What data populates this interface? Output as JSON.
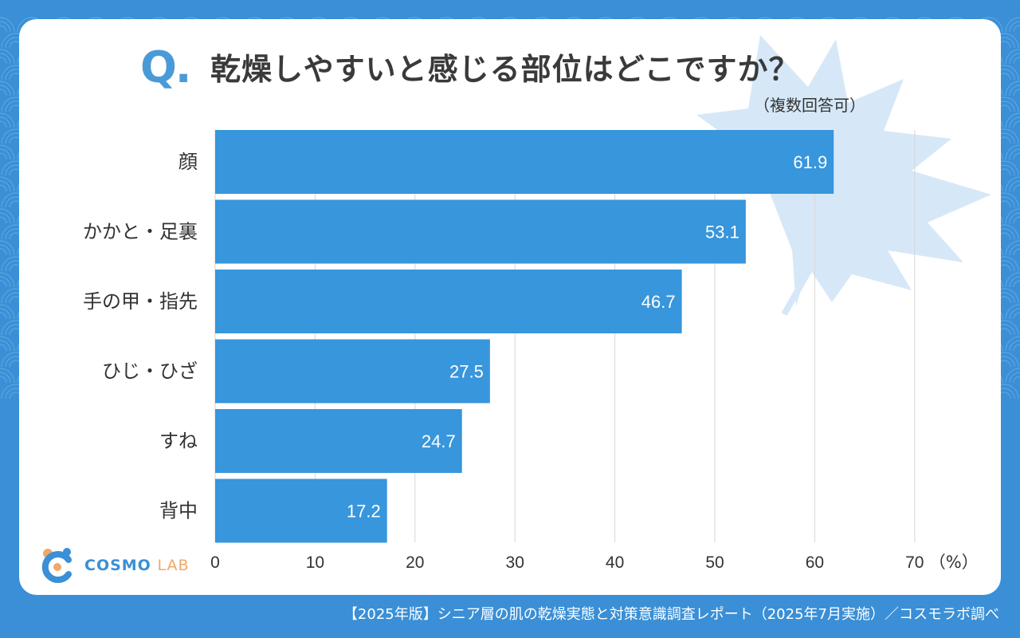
{
  "colors": {
    "background": "#3a8fd6",
    "card": "#ffffff",
    "bar": "#3796dc",
    "leaf": "#d6e8f8",
    "grid": "#d6d6d6",
    "title": "#3a3a3a",
    "q_mark": "#4a9ad8",
    "logo_accent": "#f0a868"
  },
  "header": {
    "q_mark": "Q.",
    "title": "乾燥しやすいと感じる部位はどこですか？",
    "subtitle": "（複数回答可）"
  },
  "chart_data": {
    "type": "bar",
    "orientation": "horizontal",
    "categories": [
      "顔",
      "かかと・足裏",
      "手の甲・指先",
      "ひじ・ひざ",
      "すね",
      "背中"
    ],
    "values": [
      61.9,
      53.1,
      46.7,
      27.5,
      24.7,
      17.2
    ],
    "value_labels": [
      "61.9",
      "53.1",
      "46.7",
      "27.5",
      "24.7",
      "17.2"
    ],
    "xlim": [
      0,
      70
    ],
    "xticks": [
      0,
      10,
      20,
      30,
      40,
      50,
      60,
      70
    ],
    "tick_labels": [
      "0",
      "10",
      "20",
      "30",
      "40",
      "50",
      "60",
      "70"
    ],
    "unit_label": "（%）",
    "grid": true
  },
  "logo": {
    "main": "COSMO",
    "sub": "LAB"
  },
  "footer": {
    "source": "【2025年版】シニア層の肌の乾燥実態と対策意識調査レポート（2025年7月実施）／コスモラボ調べ"
  }
}
